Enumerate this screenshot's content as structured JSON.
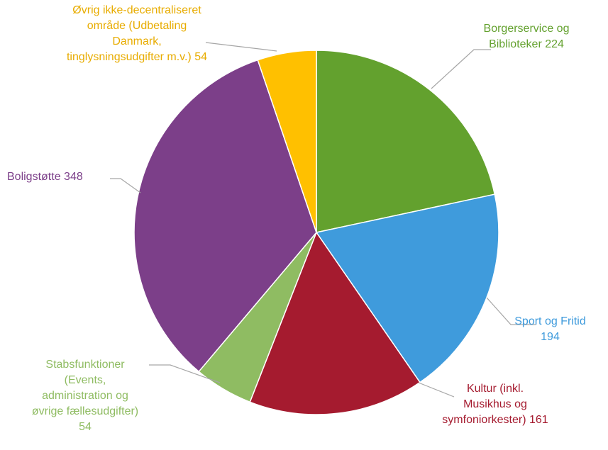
{
  "chart_data": {
    "type": "pie",
    "categories": [
      "Borgerservice og Biblioteker",
      "Sport og Fritid",
      "Kultur (inkl. Musikhus og symfoniorkester)",
      "Stabsfunktioner (Events, administration og øvrige fællesudgifter)",
      "Boligstøtte",
      "Øvrig ikke-decentraliseret område (Udbetaling Danmark, tinglysningsudgifter m.v.)"
    ],
    "values": [
      224,
      194,
      161,
      54,
      348,
      54
    ],
    "colors": [
      "#63a12e",
      "#3f9bdc",
      "#a51b2f",
      "#8fbc62",
      "#7c3f89",
      "#ffc000"
    ]
  }
}
